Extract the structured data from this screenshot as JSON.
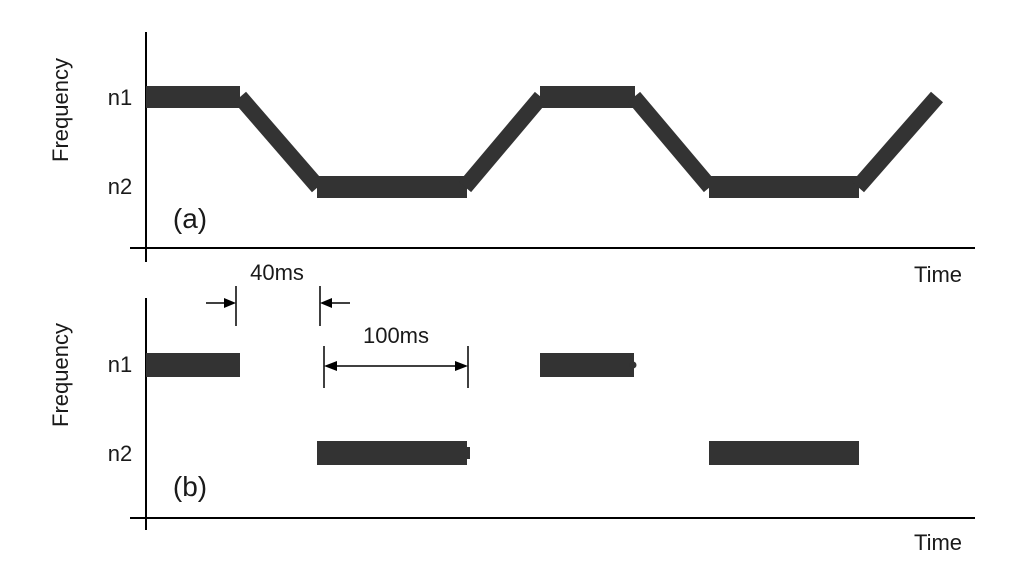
{
  "panel_a": {
    "y_axis_label": "Frequency",
    "x_axis_label": "Time",
    "level_high_label": "n1",
    "level_low_label": "n2",
    "panel_tag": "(a)"
  },
  "panel_b": {
    "y_axis_label": "Frequency",
    "x_axis_label": "Time",
    "level_high_label": "n1",
    "level_low_label": "n2",
    "panel_tag": "(b)"
  },
  "annotations": {
    "gap_label": "40ms",
    "duration_label": "100ms"
  },
  "colors": {
    "trace": "#333333",
    "axis": "#000000",
    "text": "#1a1a1a"
  }
}
